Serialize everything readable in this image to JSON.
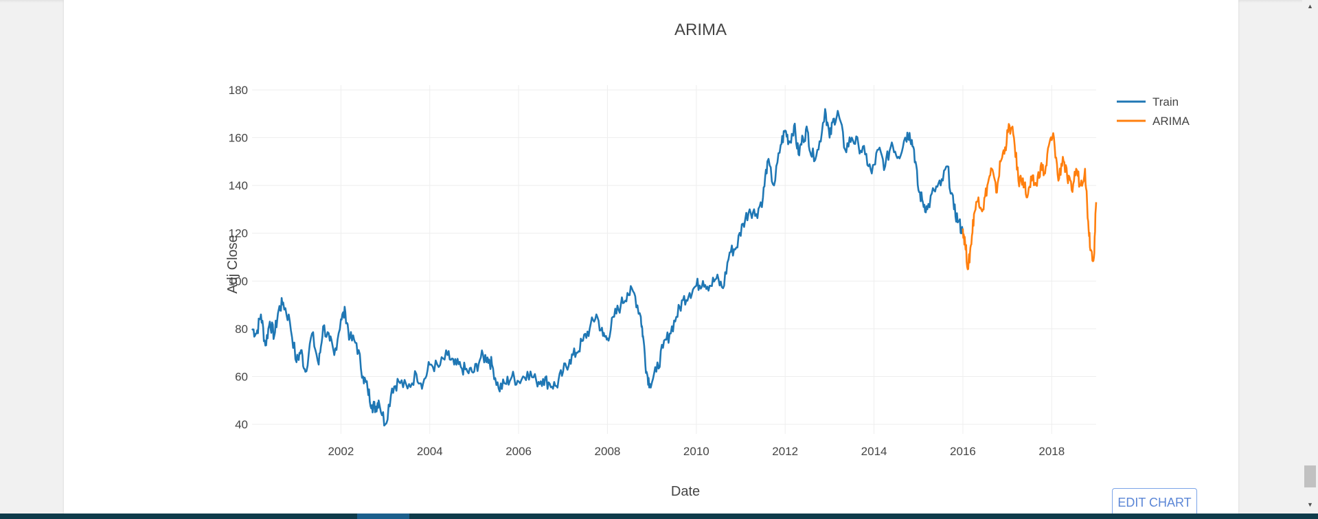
{
  "page": {
    "edit_chart_label": "EDIT CHART"
  },
  "colors": {
    "train": "#1f77b4",
    "arima": "#ff7f0e",
    "grid": "#eeeeee",
    "text": "#444444"
  },
  "chart_data": {
    "type": "line",
    "title": "ARIMA",
    "xlabel": "Date",
    "ylabel": "Adj Close",
    "xlim": [
      2000.0,
      2019.0
    ],
    "ylim": [
      36,
      182
    ],
    "xticks": [
      2002,
      2004,
      2006,
      2008,
      2010,
      2012,
      2014,
      2016,
      2018
    ],
    "xtick_labels": [
      "2002",
      "2004",
      "2006",
      "2008",
      "2010",
      "2012",
      "2014",
      "2016",
      "2018"
    ],
    "yticks": [
      40,
      60,
      80,
      100,
      120,
      140,
      160,
      180
    ],
    "ytick_labels": [
      "40",
      "60",
      "80",
      "100",
      "120",
      "140",
      "160",
      "180"
    ],
    "grid": true,
    "legend": "top-right",
    "series": [
      {
        "name": "Train",
        "color": "#1f77b4",
        "x": [
          2000.0,
          2000.1,
          2000.2,
          2000.3,
          2000.4,
          2000.5,
          2000.6,
          2000.7,
          2000.85,
          2001.0,
          2001.1,
          2001.2,
          2001.35,
          2001.5,
          2001.6,
          2001.75,
          2001.85,
          2002.0,
          2002.1,
          2002.2,
          2002.35,
          2002.5,
          2002.6,
          2002.7,
          2002.78,
          2002.85,
          2003.0,
          2003.15,
          2003.3,
          2003.5,
          2003.7,
          2003.85,
          2004.0,
          2004.2,
          2004.4,
          2004.55,
          2004.7,
          2004.85,
          2005.0,
          2005.15,
          2005.3,
          2005.4,
          2005.55,
          2005.7,
          2005.85,
          2006.0,
          2006.2,
          2006.4,
          2006.55,
          2006.7,
          2006.85,
          2007.0,
          2007.15,
          2007.3,
          2007.45,
          2007.6,
          2007.75,
          2007.9,
          2008.0,
          2008.15,
          2008.3,
          2008.45,
          2008.6,
          2008.75,
          2008.8,
          2008.88,
          2008.95,
          2009.1,
          2009.25,
          2009.4,
          2009.55,
          2009.7,
          2009.85,
          2010.0,
          2010.15,
          2010.3,
          2010.45,
          2010.6,
          2010.75,
          2010.9,
          2011.05,
          2011.2,
          2011.35,
          2011.5,
          2011.6,
          2011.75,
          2011.9,
          2012.0,
          2012.1,
          2012.2,
          2012.3,
          2012.4,
          2012.5,
          2012.6,
          2012.75,
          2012.9,
          2013.0,
          2013.1,
          2013.2,
          2013.35,
          2013.5,
          2013.65,
          2013.8,
          2013.95,
          2014.1,
          2014.25,
          2014.4,
          2014.55,
          2014.7,
          2014.8,
          2014.9,
          2015.0,
          2015.1,
          2015.2,
          2015.35,
          2015.5,
          2015.65,
          2015.8,
          2015.9,
          2016.0
        ],
        "y": [
          80,
          78,
          86,
          73,
          83,
          77,
          88,
          91,
          83,
          66,
          71,
          62,
          78,
          65,
          81,
          75,
          69,
          84,
          87,
          76,
          74,
          60,
          55,
          48,
          47,
          50,
          40,
          55,
          58,
          55,
          61,
          57,
          65,
          64,
          69,
          65,
          64,
          62,
          62,
          68,
          68,
          65,
          55,
          57,
          60,
          58,
          62,
          58,
          59,
          57,
          56,
          62,
          67,
          70,
          75,
          80,
          86,
          77,
          76,
          85,
          90,
          95,
          95,
          85,
          77,
          62,
          57,
          62,
          72,
          78,
          85,
          92,
          95,
          98,
          100,
          98,
          101,
          97,
          112,
          114,
          124,
          130,
          128,
          135,
          150,
          140,
          157,
          163,
          158,
          165,
          153,
          160,
          163,
          152,
          155,
          172,
          160,
          168,
          170,
          155,
          160,
          157,
          153,
          145,
          155,
          148,
          158,
          152,
          160,
          162,
          155,
          138,
          133,
          130,
          138,
          140,
          148,
          130,
          125,
          120
        ]
      },
      {
        "name": "ARIMA",
        "color": "#ff7f0e",
        "x": [
          2016.0,
          2016.05,
          2016.12,
          2016.18,
          2016.25,
          2016.35,
          2016.45,
          2016.55,
          2016.65,
          2016.75,
          2016.85,
          2016.95,
          2017.05,
          2017.15,
          2017.25,
          2017.35,
          2017.45,
          2017.55,
          2017.65,
          2017.75,
          2017.85,
          2017.95,
          2018.05,
          2018.15,
          2018.25,
          2018.35,
          2018.45,
          2018.55,
          2018.65,
          2018.75,
          2018.82,
          2018.88,
          2018.95,
          2019.0
        ],
        "y": [
          122,
          116,
          105,
          115,
          128,
          135,
          130,
          140,
          147,
          137,
          150,
          156,
          165,
          160,
          142,
          143,
          135,
          142,
          140,
          148,
          145,
          158,
          160,
          142,
          152,
          143,
          138,
          147,
          140,
          147,
          125,
          113,
          110,
          133
        ]
      }
    ]
  }
}
